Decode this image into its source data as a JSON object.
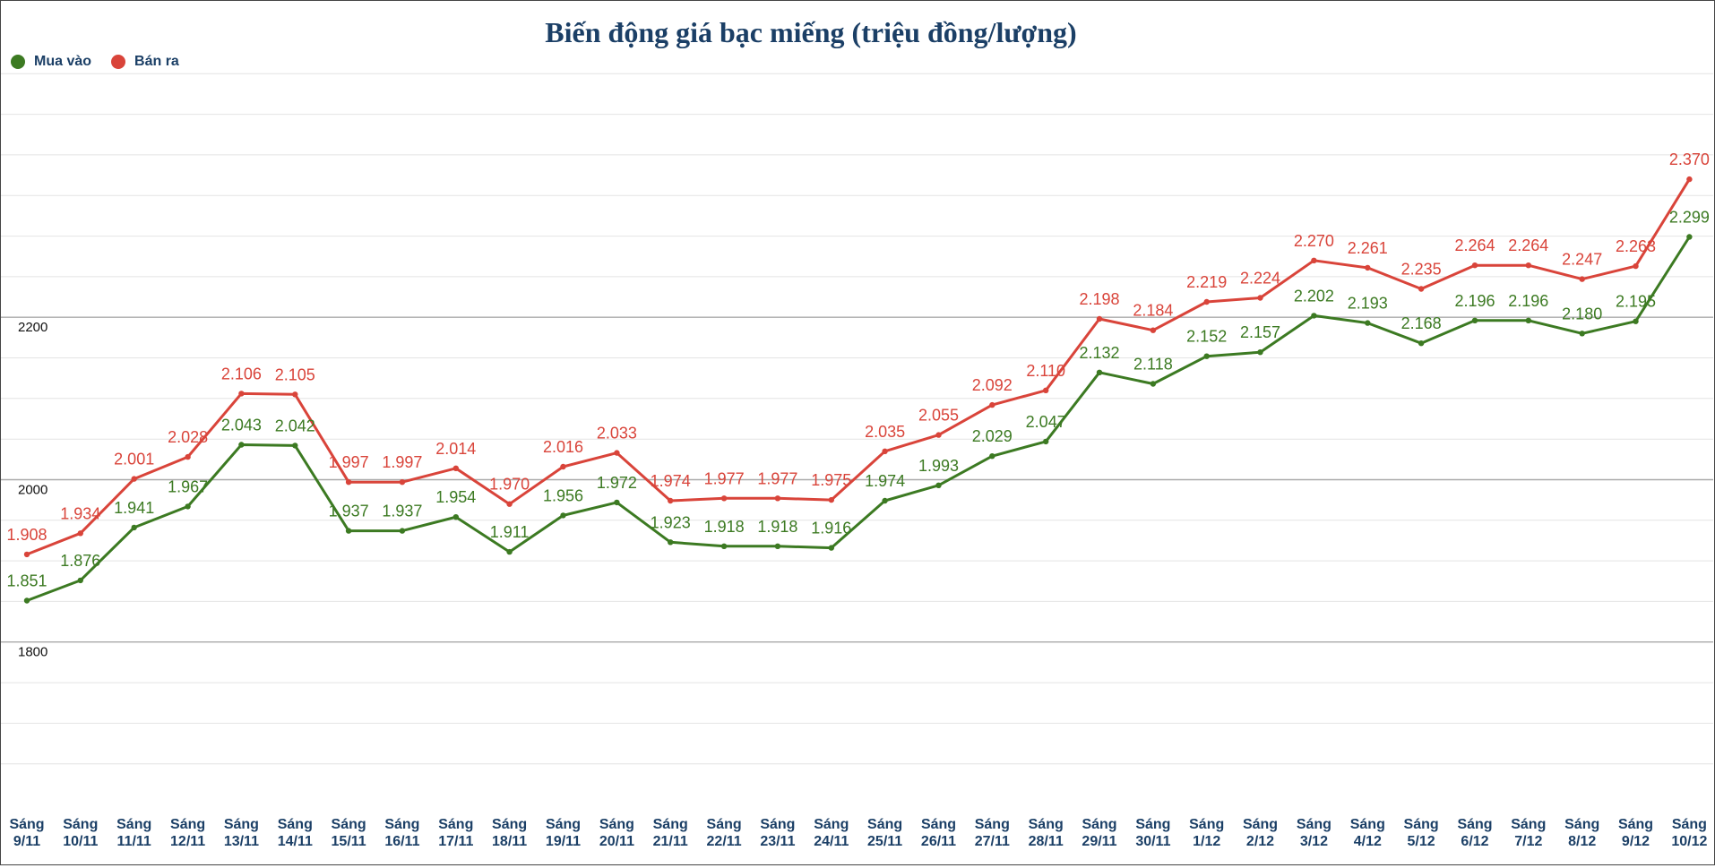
{
  "chart_data": {
    "type": "line",
    "title": "Biến động giá bạc miếng (triệu đồng/lượng)",
    "xlabel": "",
    "ylabel": "",
    "ylim": [
      1600,
      2550
    ],
    "yticks": [
      1800,
      2000,
      2200
    ],
    "grid": true,
    "legend_position": "top-left",
    "categories": [
      "Sáng\n9/11",
      "Sáng\n10/11",
      "Sáng\n11/11",
      "Sáng\n12/11",
      "Sáng\n13/11",
      "Sáng\n14/11",
      "Sáng\n15/11",
      "Sáng\n16/11",
      "Sáng\n17/11",
      "Sáng\n18/11",
      "Sáng\n19/11",
      "Sáng\n20/11",
      "Sáng\n21/11",
      "Sáng\n22/11",
      "Sáng\n23/11",
      "Sáng\n24/11",
      "Sáng\n25/11",
      "Sáng\n26/11",
      "Sáng\n27/11",
      "Sáng\n28/11",
      "Sáng\n29/11",
      "Sáng\n30/11",
      "Sáng\n1/12",
      "Sáng\n2/12",
      "Sáng\n3/12",
      "Sáng\n4/12",
      "Sáng\n5/12",
      "Sáng\n6/12",
      "Sáng\n7/12",
      "Sáng\n8/12",
      "Sáng\n9/12",
      "Sáng\n10/12"
    ],
    "series": [
      {
        "name": "Mua vào",
        "color": "#3c7a22",
        "values": [
          1851,
          1876,
          1941,
          1967,
          2043,
          2042,
          1937,
          1937,
          1954,
          1911,
          1956,
          1972,
          1923,
          1918,
          1918,
          1916,
          1974,
          1993,
          2029,
          2047,
          2132,
          2118,
          2152,
          2157,
          2202,
          2193,
          2168,
          2196,
          2196,
          2180,
          2195,
          2299
        ],
        "labels": [
          "1.851",
          "1.876",
          "1.941",
          "1.967",
          "2.043",
          "2.042",
          "1.937",
          "1.937",
          "1.954",
          "1.911",
          "1.956",
          "1.972",
          "1.923",
          "1.918",
          "1.918",
          "1.916",
          "1.974",
          "1.993",
          "2.029",
          "2.047",
          "2.132",
          "2.118",
          "2.152",
          "2.157",
          "2.202",
          "2.193",
          "2.168",
          "2.196",
          "2.196",
          "2.180",
          "2.195",
          "2.299"
        ]
      },
      {
        "name": "Bán ra",
        "color": "#d9443a",
        "values": [
          1908,
          1934,
          2001,
          2028,
          2106,
          2105,
          1997,
          1997,
          2014,
          1970,
          2016,
          2033,
          1974,
          1977,
          1977,
          1975,
          2035,
          2055,
          2092,
          2110,
          2198,
          2184,
          2219,
          2224,
          2270,
          2261,
          2235,
          2264,
          2264,
          2247,
          2263,
          2370
        ],
        "labels": [
          "1.908",
          "1.934",
          "2.001",
          "2.028",
          "2.106",
          "2.105",
          "1.997",
          "1.997",
          "2.014",
          "1.970",
          "2.016",
          "2.033",
          "1.974",
          "1.977",
          "1.977",
          "1.975",
          "2.035",
          "2.055",
          "2.092",
          "2.110",
          "2.198",
          "2.184",
          "2.219",
          "2.224",
          "2.270",
          "2.261",
          "2.235",
          "2.264",
          "2.264",
          "2.247",
          "2.263",
          "2.370"
        ]
      }
    ]
  }
}
